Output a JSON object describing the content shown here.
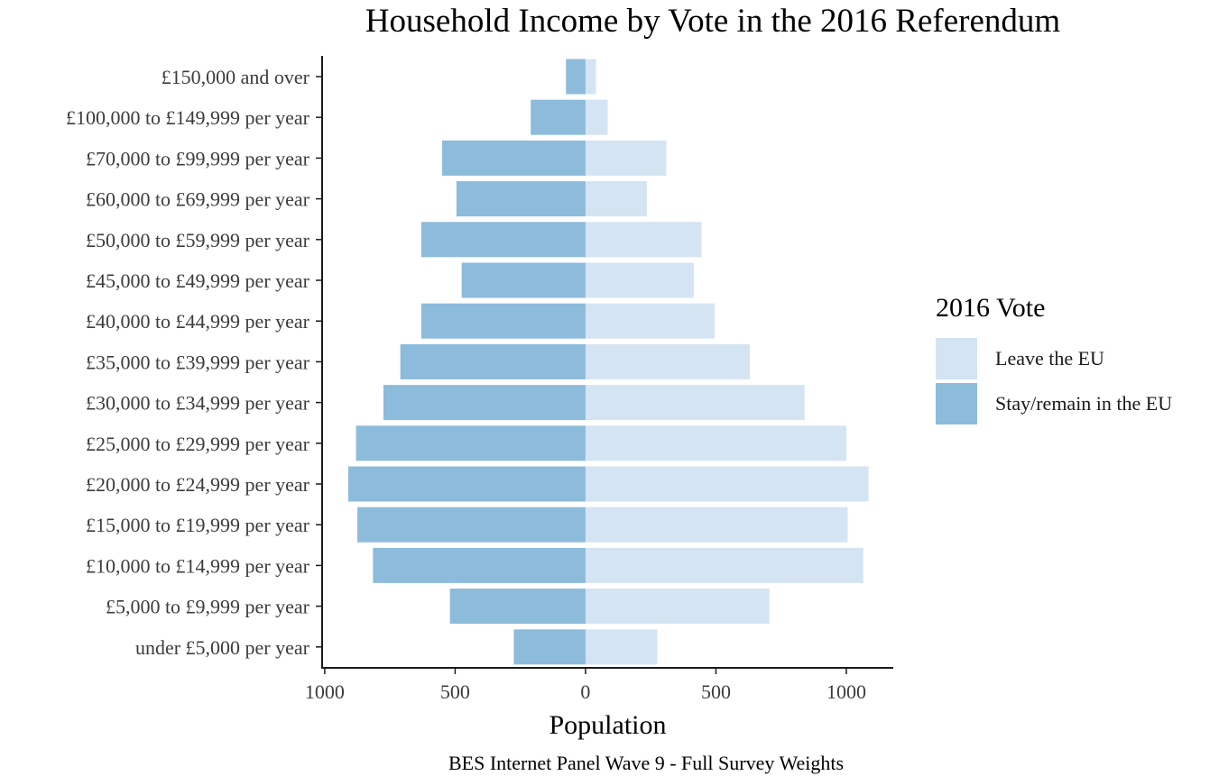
{
  "chart_data": {
    "type": "bar",
    "orientation": "horizontal-diverging",
    "title": "Household Income by Vote in the 2016 Referendum",
    "xlabel": "Population",
    "caption": "BES Internet Panel Wave 9 - Full Survey Weights",
    "categories": [
      "£150,000 and over",
      "£100,000 to £149,999 per year",
      "£70,000 to £99,999 per year",
      "£60,000 to £69,999 per year",
      "£50,000 to £59,999 per year",
      "£45,000 to £49,999 per year",
      "£40,000 to £44,999 per year",
      "£35,000 to £39,999 per year",
      "£30,000 to £34,999 per year",
      "£25,000 to £29,999 per year",
      "£20,000 to £24,999 per year",
      "£15,000 to £19,999 per year",
      "£10,000 to £14,999 per year",
      "£5,000 to £9,999 per year",
      "under £5,000 per year"
    ],
    "series": [
      {
        "name": "Leave the EU",
        "side": "right",
        "color": "#d5e4f3",
        "values": [
          40,
          85,
          310,
          235,
          445,
          415,
          495,
          630,
          840,
          1000,
          1085,
          1005,
          1065,
          705,
          275
        ]
      },
      {
        "name": "Stay/remain in the EU",
        "side": "left",
        "color": "#8dbbdb",
        "values": [
          75,
          210,
          550,
          495,
          630,
          475,
          630,
          710,
          775,
          880,
          910,
          875,
          815,
          520,
          275
        ]
      }
    ],
    "xlim": [
      -1010,
      1180
    ],
    "xticks": [
      {
        "value": -1000,
        "label": "1000"
      },
      {
        "value": -500,
        "label": "500"
      },
      {
        "value": 0,
        "label": "0"
      },
      {
        "value": 500,
        "label": "500"
      },
      {
        "value": 1000,
        "label": "1000"
      }
    ],
    "legend": {
      "title": "2016 Vote",
      "position": "right"
    },
    "grid": false
  }
}
